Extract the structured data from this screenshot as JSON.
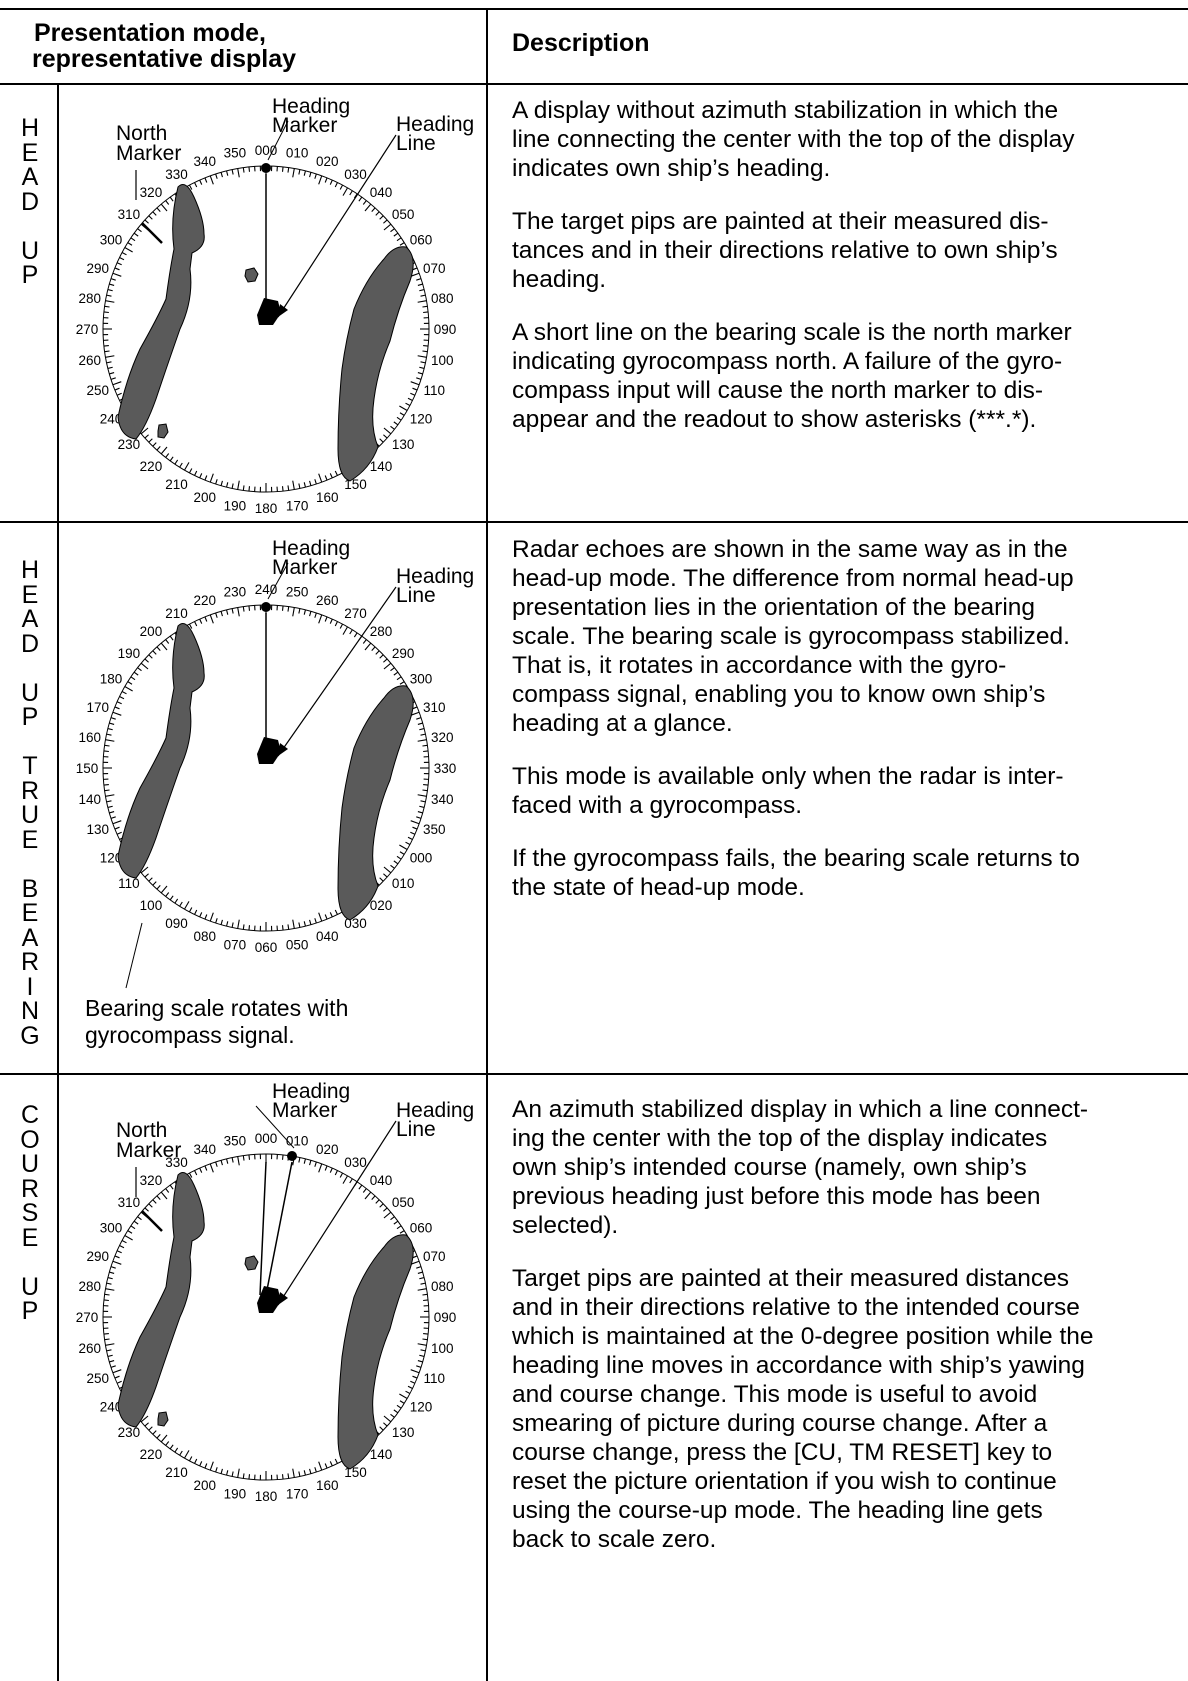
{
  "header": {
    "col1": "Presentation mode, representative display",
    "col1_line1": "Presentation mode,",
    "col1_line2": "representative display",
    "col2": "Description"
  },
  "rows": [
    {
      "mode_label": "H\nE\nA\nD\n\nU\nP",
      "labels": {
        "heading_marker": "Heading\nMarker",
        "heading_line": "Heading\nLine",
        "north_marker": "North\nMarker"
      },
      "ticks": [
        "000",
        "010",
        "020",
        "030",
        "040",
        "050",
        "060",
        "070",
        "080",
        "090",
        "100",
        "110",
        "120",
        "130",
        "140",
        "150",
        "160",
        "170",
        "180",
        "190",
        "200",
        "210",
        "220",
        "230",
        "240",
        "250",
        "260",
        "270",
        "280",
        "290",
        "300",
        "310",
        "320",
        "330",
        "340",
        "350"
      ],
      "paragraphs": [
        "A display without azimuth stabilization in which the\nline connecting the center with the top of the display\nindicates own ship’s heading.",
        "The target pips are painted at their measured dis-\ntances and in their directions relative to own ship’s\nheading.",
        "A short line on the bearing scale is the north marker\nindicating gyrocompass north. A failure of the gyro-\ncompass input will cause the north marker to dis-\nappear and the readout to show asterisks (***.*)."
      ]
    },
    {
      "mode_label": "H\nE\nA\nD\n\nU\nP\n\nT\nR\nU\nE\n\nB\nE\nA\nR\nI\nN\nG",
      "labels": {
        "heading_marker": "Heading\nMarker",
        "heading_line": "Heading\nLine"
      },
      "ticks": [
        "240",
        "250",
        "260",
        "270",
        "280",
        "290",
        "300",
        "310",
        "320",
        "330",
        "340",
        "350",
        "000",
        "010",
        "020",
        "030",
        "040",
        "050",
        "060",
        "070",
        "080",
        "090",
        "100",
        "110",
        "120",
        "130",
        "140",
        "150",
        "160",
        "170",
        "180",
        "190",
        "200",
        "210",
        "220",
        "230"
      ],
      "caption": "Bearing scale rotates with\ngyrocompass signal.",
      "paragraphs": [
        "Radar echoes are shown in the same way as in the\nhead-up mode. The difference from normal head-up\npresentation lies in the orientation of the bearing\nscale. The bearing scale is gyrocompass stabilized.\nThat is, it rotates in accordance with the gyro-\ncompass signal, enabling you to know own ship’s\nheading at a glance.",
        "This mode is available only when the radar is inter-\nfaced with a gyrocompass.",
        "If the gyrocompass fails, the bearing scale returns to\nthe state of head-up mode."
      ]
    },
    {
      "mode_label": "C\nO\nU\nR\nS\nE\n\nU\nP",
      "labels": {
        "heading_marker": "Heading\nMarker",
        "heading_line": "Heading\nLine",
        "north_marker": "North\nMarker"
      },
      "ticks": [
        "000",
        "010",
        "020",
        "030",
        "040",
        "050",
        "060",
        "070",
        "080",
        "090",
        "100",
        "110",
        "120",
        "130",
        "140",
        "150",
        "160",
        "170",
        "180",
        "190",
        "200",
        "210",
        "220",
        "230",
        "240",
        "250",
        "260",
        "270",
        "280",
        "290",
        "300",
        "310",
        "320",
        "330",
        "340",
        "350"
      ],
      "paragraphs": [
        "An azimuth stabilized display in which a line connect-\ning the center with the top of the display indicates\nown ship’s intended course (namely, own ship’s\nprevious heading just before this mode has been\nselected).",
        "Target pips are painted at their measured distances\nand in their directions relative to the intended course\nwhich is maintained at the 0-degree position while the\nheading line moves in accordance with ship’s yawing\nand course change. This mode is useful to avoid\nsmearing of picture during course change. After a\ncourse change, press the [CU, TM RESET] key to\nreset the picture orientation if you wish to continue\nusing the course-up mode. The heading line gets\nback to scale zero."
      ]
    }
  ]
}
